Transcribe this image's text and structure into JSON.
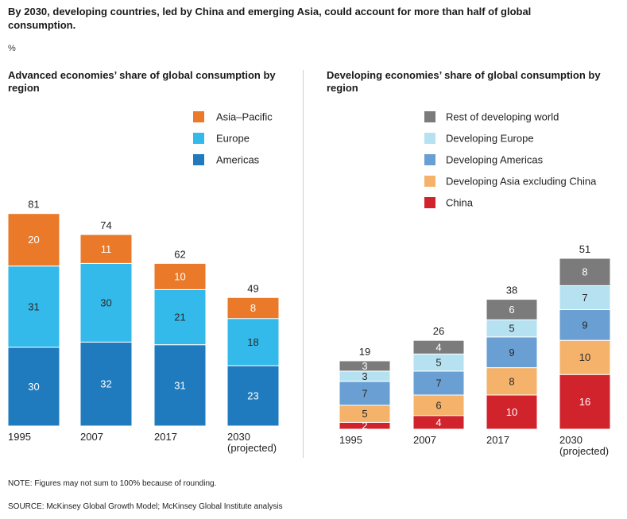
{
  "headline": "By 2030, developing countries, led by China and emerging Asia, could account for more than half of global consumption.",
  "unit": "%",
  "note": "NOTE: Figures may not sum to 100% because of rounding.",
  "source": "SOURCE: McKinsey Global Growth Model; McKinsey Global Institute analysis",
  "chart_data": [
    {
      "type": "bar",
      "stacked": true,
      "title": "Advanced economies’ share of global consumption by region",
      "categories": [
        [
          "1995"
        ],
        [
          "2007"
        ],
        [
          "2017"
        ],
        [
          "2030",
          "(projected)"
        ]
      ],
      "totals": [
        "81",
        "74",
        "62",
        "49"
      ],
      "ylim": [
        0,
        81
      ],
      "series": [
        {
          "name": "Americas",
          "color": "#1f7bbd",
          "values": [
            30,
            32,
            31,
            23
          ]
        },
        {
          "name": "Europe",
          "color": "#33b9ea",
          "values": [
            31,
            30,
            21,
            18
          ]
        },
        {
          "name": "Asia–Pacific",
          "color": "#ea7a2a",
          "values": [
            20,
            11,
            10,
            8
          ]
        }
      ],
      "legend": [
        {
          "name": "Asia–Pacific",
          "color": "#ea7a2a"
        },
        {
          "name": "Europe",
          "color": "#33b9ea"
        },
        {
          "name": "Americas",
          "color": "#1f7bbd"
        }
      ]
    },
    {
      "type": "bar",
      "stacked": true,
      "title": "Developing economies’ share of global consumption by region",
      "categories": [
        [
          "1995"
        ],
        [
          "2007"
        ],
        [
          "2017"
        ],
        [
          "2030",
          "(projected)"
        ]
      ],
      "totals": [
        "19",
        "26",
        "38",
        "51"
      ],
      "ylim": [
        0,
        81
      ],
      "series": [
        {
          "name": "China",
          "color": "#d0232c",
          "values": [
            2,
            4,
            10,
            16
          ]
        },
        {
          "name": "Developing Asia excluding China",
          "color": "#f5b26a",
          "values": [
            5,
            6,
            8,
            10
          ]
        },
        {
          "name": "Developing Americas",
          "color": "#6a9fd4",
          "values": [
            7,
            7,
            9,
            9
          ]
        },
        {
          "name": "Developing Europe",
          "color": "#b6e1f0",
          "values": [
            3,
            5,
            5,
            7
          ]
        },
        {
          "name": "Rest of developing world",
          "color": "#7b7b7b",
          "values": [
            3,
            4,
            6,
            8
          ]
        }
      ],
      "legend": [
        {
          "name": "Rest of developing world",
          "color": "#7b7b7b"
        },
        {
          "name": "Developing Europe",
          "color": "#b6e1f0"
        },
        {
          "name": "Developing Americas",
          "color": "#6a9fd4"
        },
        {
          "name": "Developing Asia excluding China",
          "color": "#f5b26a"
        },
        {
          "name": "China",
          "color": "#d0232c"
        }
      ]
    }
  ]
}
